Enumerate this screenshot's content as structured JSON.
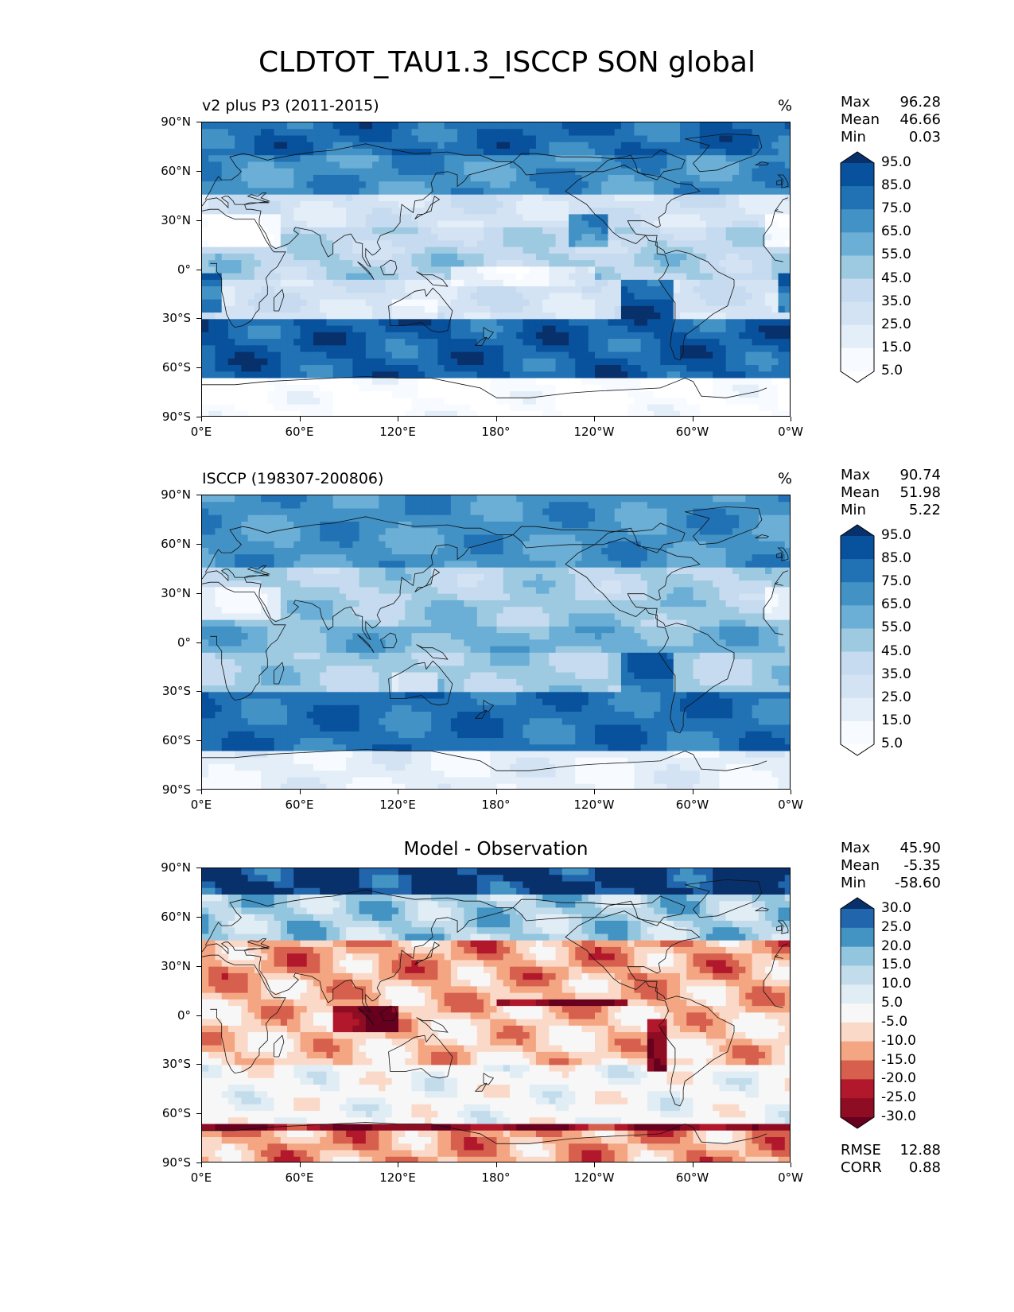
{
  "figure": {
    "title": "CLDTOT_TAU1.3_ISCCP SON global"
  },
  "x_ticks": [
    "0°E",
    "60°E",
    "120°E",
    "180°",
    "120°W",
    "60°W",
    "0°W"
  ],
  "y_ticks": [
    "90°N",
    "60°N",
    "30°N",
    "0°",
    "30°S",
    "60°S",
    "90°S"
  ],
  "chart_data": [
    {
      "type": "heatmap",
      "title": "v2 plus P3 (2011-2015)",
      "units": "%",
      "stats": {
        "Max": "96.28",
        "Mean": "46.66",
        "Min": "0.03"
      },
      "colorbar": {
        "levels": [
          "95.0",
          "85.0",
          "75.0",
          "65.0",
          "55.0",
          "45.0",
          "35.0",
          "25.0",
          "15.0",
          "5.0"
        ],
        "colors": [
          "#08306b",
          "#08519c",
          "#2171b5",
          "#4292c6",
          "#6baed6",
          "#9ecae1",
          "#c6dbef",
          "#d4e3f3",
          "#e4eef8",
          "#f7fbff",
          "#ffffff"
        ]
      },
      "xlim": [
        0,
        360
      ],
      "ylim": [
        -90,
        90
      ]
    },
    {
      "type": "heatmap",
      "title": "ISCCP (198307-200806)",
      "units": "%",
      "stats": {
        "Max": "90.74",
        "Mean": "51.98",
        "Min": "5.22"
      },
      "colorbar": {
        "levels": [
          "95.0",
          "85.0",
          "75.0",
          "65.0",
          "55.0",
          "45.0",
          "35.0",
          "25.0",
          "15.0",
          "5.0"
        ],
        "colors": [
          "#08306b",
          "#08519c",
          "#2171b5",
          "#4292c6",
          "#6baed6",
          "#9ecae1",
          "#c6dbef",
          "#d4e3f3",
          "#e4eef8",
          "#f7fbff",
          "#ffffff"
        ]
      },
      "xlim": [
        0,
        360
      ],
      "ylim": [
        -90,
        90
      ]
    },
    {
      "type": "heatmap",
      "title": "Model - Observation",
      "units": "",
      "stats": {
        "Max": "45.90",
        "Mean": "-5.35",
        "Min": "-58.60"
      },
      "error_stats": {
        "RMSE": "12.88",
        "CORR": "0.88"
      },
      "colorbar": {
        "levels": [
          "30.0",
          "25.0",
          "20.0",
          "15.0",
          "10.0",
          "5.0",
          "-5.0",
          "-10.0",
          "-15.0",
          "-20.0",
          "-25.0",
          "-30.0"
        ],
        "colors": [
          "#08306b",
          "#2166ac",
          "#4393c3",
          "#92c5de",
          "#c3dcec",
          "#e1edf5",
          "#f7f7f7",
          "#fbd9c8",
          "#f4a582",
          "#d6604d",
          "#b2182b",
          "#8e0d23",
          "#67001f"
        ]
      },
      "xlim": [
        0,
        360
      ],
      "ylim": [
        -90,
        90
      ]
    }
  ]
}
